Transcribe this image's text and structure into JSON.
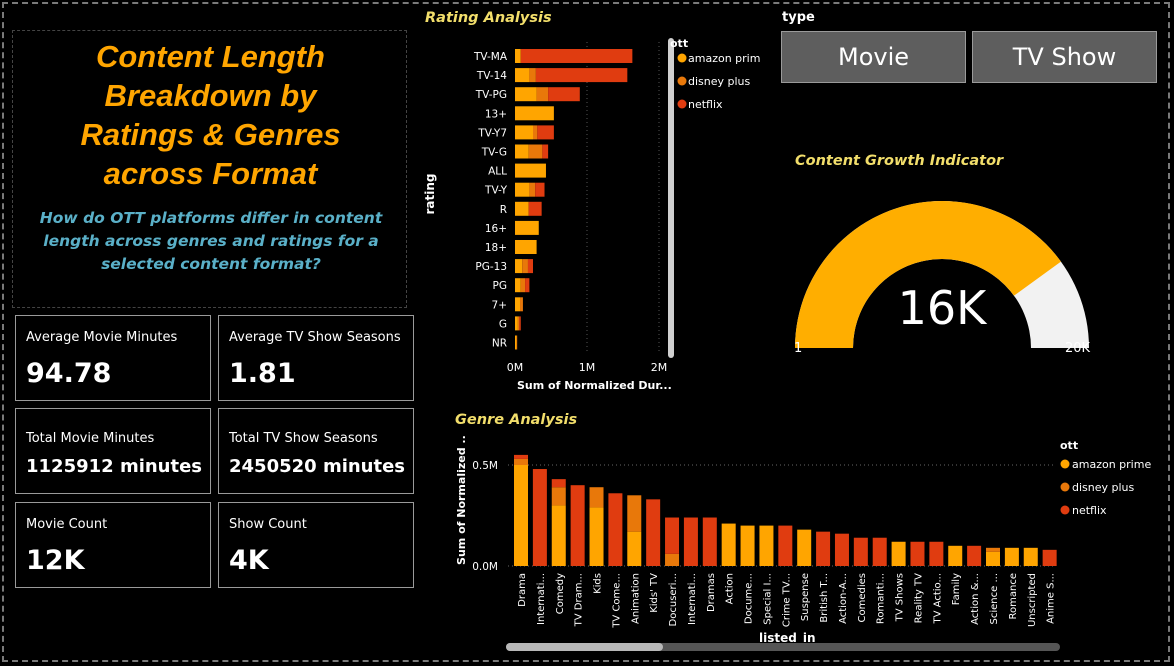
{
  "header": {
    "title_lines": [
      "Content Length",
      "Breakdown by",
      "Ratings & Genres",
      "across Format"
    ],
    "subtitle": "How do OTT platforms differ in content length across genres and ratings for a selected content format?"
  },
  "kpis": {
    "avg_movie": {
      "label": "Average Movie Minutes",
      "value": "94.78"
    },
    "avg_tv": {
      "label": "Average TV Show Seasons",
      "value": "1.81"
    },
    "total_movie": {
      "label": "Total Movie Minutes",
      "value": "1125912 minutes"
    },
    "total_tv": {
      "label": "Total TV Show Seasons",
      "value": "2450520 minutes"
    },
    "movie_count": {
      "label": "Movie Count",
      "value": "12K"
    },
    "show_count": {
      "label": "Show Count",
      "value": "4K"
    }
  },
  "slicer": {
    "label": "type",
    "options": [
      "Movie",
      "TV Show"
    ]
  },
  "gauge": {
    "title": "Content Growth Indicator",
    "value_label": "16K",
    "min_label": "1",
    "max_label": "20K",
    "fraction": 0.8
  },
  "colors": {
    "amazon prime": "#ffa500",
    "disney plus": "#e8780a",
    "netflix": "#e03c10"
  },
  "chart_data": [
    {
      "type": "bar",
      "orientation": "horizontal",
      "stacked": true,
      "title": "Rating Analysis",
      "xlabel": "Sum of Normalized Dur...",
      "ylabel": "rating",
      "legend_title": "ott",
      "legend_position": "right",
      "x_ticks": [
        "0M",
        "1M",
        "2M"
      ],
      "xlim": [
        0,
        2000000
      ],
      "categories": [
        "TV-MA",
        "TV-14",
        "TV-PG",
        "13+",
        "TV-Y7",
        "TV-G",
        "ALL",
        "TV-Y",
        "R",
        "16+",
        "18+",
        "PG-13",
        "PG",
        "7+",
        "G",
        "NR"
      ],
      "series": [
        {
          "name": "amazon prime",
          "values": [
            80000,
            200000,
            300000,
            540000,
            250000,
            190000,
            430000,
            200000,
            190000,
            330000,
            300000,
            100000,
            80000,
            70000,
            40000,
            20000
          ]
        },
        {
          "name": "disney plus",
          "values": [
            0,
            90000,
            160000,
            0,
            60000,
            190000,
            0,
            80000,
            0,
            0,
            0,
            80000,
            60000,
            40000,
            20000,
            10000
          ]
        },
        {
          "name": "netflix",
          "values": [
            1550000,
            1270000,
            440000,
            0,
            230000,
            80000,
            0,
            130000,
            180000,
            0,
            0,
            70000,
            60000,
            0,
            20000,
            0
          ]
        }
      ]
    },
    {
      "type": "bar",
      "orientation": "vertical",
      "stacked": true,
      "title": "Genre Analysis",
      "xlabel": "listed_in",
      "ylabel": "Sum of Normalized ...",
      "legend_title": "ott",
      "legend_position": "right",
      "y_ticks": [
        "0.0M",
        "0.5M"
      ],
      "ylim": [
        0,
        550000
      ],
      "categories": [
        "Drama",
        "Internati...",
        "Comedy",
        "TV Dram...",
        "Kids",
        "TV Come...",
        "Animation",
        "Kids' TV",
        "Docuseri...",
        "Internati...",
        "Dramas",
        "Action",
        "Docume...",
        "Special I...",
        "Crime TV...",
        "Suspense",
        "British T...",
        "Action-A...",
        "Comedies",
        "Romanti...",
        "TV Shows",
        "Reality TV",
        "TV Actio...",
        "Family",
        "Action &...",
        "Science ...",
        "Romance",
        "Unscripted",
        "Anime S..."
      ],
      "series": [
        {
          "name": "amazon prime",
          "values": [
            500000,
            0,
            300000,
            0,
            290000,
            0,
            170000,
            0,
            0,
            0,
            0,
            210000,
            200000,
            200000,
            0,
            180000,
            0,
            0,
            0,
            0,
            120000,
            0,
            0,
            100000,
            0,
            70000,
            90000,
            90000,
            0
          ]
        },
        {
          "name": "disney plus",
          "values": [
            30000,
            0,
            90000,
            0,
            100000,
            0,
            180000,
            0,
            60000,
            0,
            0,
            0,
            0,
            0,
            0,
            0,
            0,
            0,
            0,
            0,
            0,
            0,
            0,
            0,
            0,
            20000,
            0,
            0,
            0
          ]
        },
        {
          "name": "netflix",
          "values": [
            20000,
            480000,
            40000,
            400000,
            0,
            360000,
            0,
            330000,
            180000,
            240000,
            240000,
            0,
            0,
            0,
            200000,
            0,
            170000,
            160000,
            140000,
            140000,
            0,
            120000,
            120000,
            0,
            100000,
            0,
            0,
            0,
            80000
          ]
        }
      ]
    }
  ]
}
